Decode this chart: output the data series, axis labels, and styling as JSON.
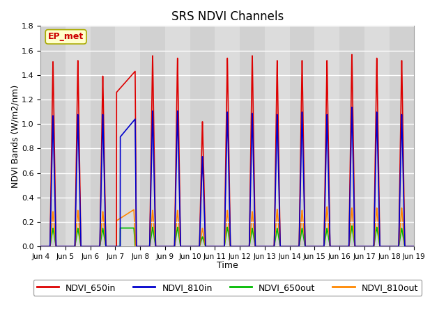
{
  "title": "SRS NDVI Channels",
  "xlabel": "Time",
  "ylabel": "NDVI Bands (W/m2/nm)",
  "ylim": [
    0.0,
    1.8
  ],
  "annotation_text": "EP_met",
  "plot_bg_color": "#d8d8d8",
  "lines": {
    "NDVI_650in": {
      "color": "#dd0000",
      "lw": 1.2
    },
    "NDVI_810in": {
      "color": "#0000cc",
      "lw": 1.2
    },
    "NDVI_650out": {
      "color": "#00bb00",
      "lw": 1.2
    },
    "NDVI_810out": {
      "color": "#ff8800",
      "lw": 1.2
    }
  },
  "xtick_labels": [
    "Jun 4",
    "Jun 5",
    "Jun 6",
    "Jun 7",
    "Jun 8",
    "Jun 9",
    "Jun 10",
    "Jun 11",
    "Jun 12",
    "Jun 13",
    "Jun 14",
    "Jun 15",
    "Jun 16",
    "Jun 17",
    "Jun 18",
    "Jun 19"
  ],
  "ytick_labels": [
    "0.0",
    "0.2",
    "0.4",
    "0.6",
    "0.8",
    "1.0",
    "1.2",
    "1.4",
    "1.6",
    "1.8"
  ],
  "yticks": [
    0.0,
    0.2,
    0.4,
    0.6,
    0.8,
    1.0,
    1.2,
    1.4,
    1.6,
    1.8
  ],
  "peaks_650in": [
    1.54,
    1.55,
    1.42,
    1.43,
    1.59,
    1.57,
    1.04,
    1.57,
    1.59,
    1.55,
    1.55,
    1.55,
    1.6,
    1.57,
    1.55
  ],
  "peaks_810in": [
    1.09,
    1.1,
    1.1,
    1.04,
    1.13,
    1.13,
    0.75,
    1.12,
    1.11,
    1.1,
    1.12,
    1.1,
    1.16,
    1.12,
    1.1
  ],
  "peaks_650out": [
    0.15,
    0.15,
    0.15,
    0.15,
    0.16,
    0.16,
    0.08,
    0.16,
    0.15,
    0.15,
    0.15,
    0.15,
    0.17,
    0.16,
    0.15
  ],
  "peaks_810out": [
    0.29,
    0.3,
    0.29,
    0.3,
    0.3,
    0.3,
    0.15,
    0.3,
    0.29,
    0.31,
    0.3,
    0.33,
    0.32,
    0.32,
    0.32
  ],
  "n_days": 15
}
